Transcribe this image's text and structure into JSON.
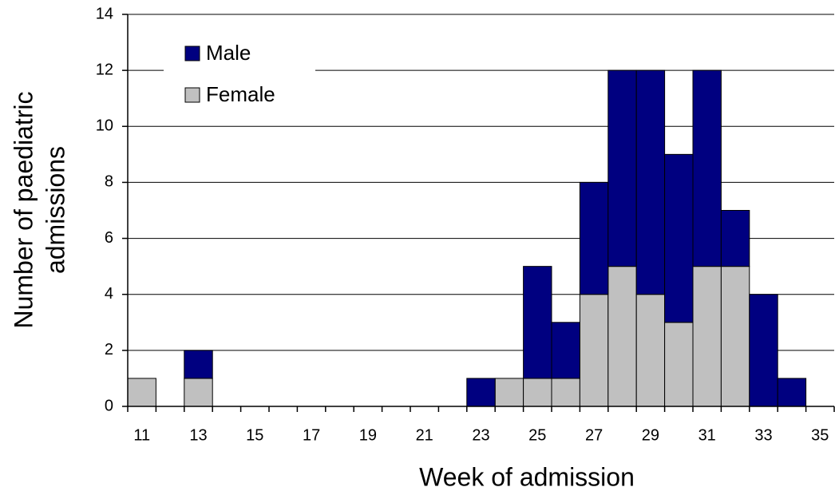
{
  "chart_data": {
    "type": "stacked-bar",
    "x_label": "Week of admission",
    "y_label": [
      "Number of paediatric",
      "admissions"
    ],
    "categories": [
      "11",
      null,
      "13",
      null,
      "15",
      null,
      "17",
      null,
      "19",
      null,
      "21",
      null,
      "23",
      null,
      "25",
      null,
      "27",
      null,
      "29",
      null,
      "31",
      null,
      "33",
      null,
      "35"
    ],
    "series": [
      {
        "name": "Male",
        "color": "#000080",
        "values": [
          0,
          0,
          1,
          0,
          0,
          0,
          0,
          0,
          0,
          0,
          0,
          0,
          1,
          0,
          4,
          2,
          4,
          7,
          8,
          6,
          7,
          2,
          4,
          1,
          0
        ]
      },
      {
        "name": "Female",
        "color": "#c0c0c0",
        "values": [
          1,
          0,
          1,
          0,
          0,
          0,
          0,
          0,
          0,
          0,
          0,
          0,
          0,
          1,
          1,
          1,
          4,
          5,
          4,
          3,
          5,
          5,
          0,
          0,
          0
        ]
      }
    ],
    "ylim": [
      0,
      14
    ],
    "yticks": [
      0,
      2,
      4,
      6,
      8,
      10,
      12,
      14
    ],
    "grid": true,
    "legend": "top-left"
  }
}
